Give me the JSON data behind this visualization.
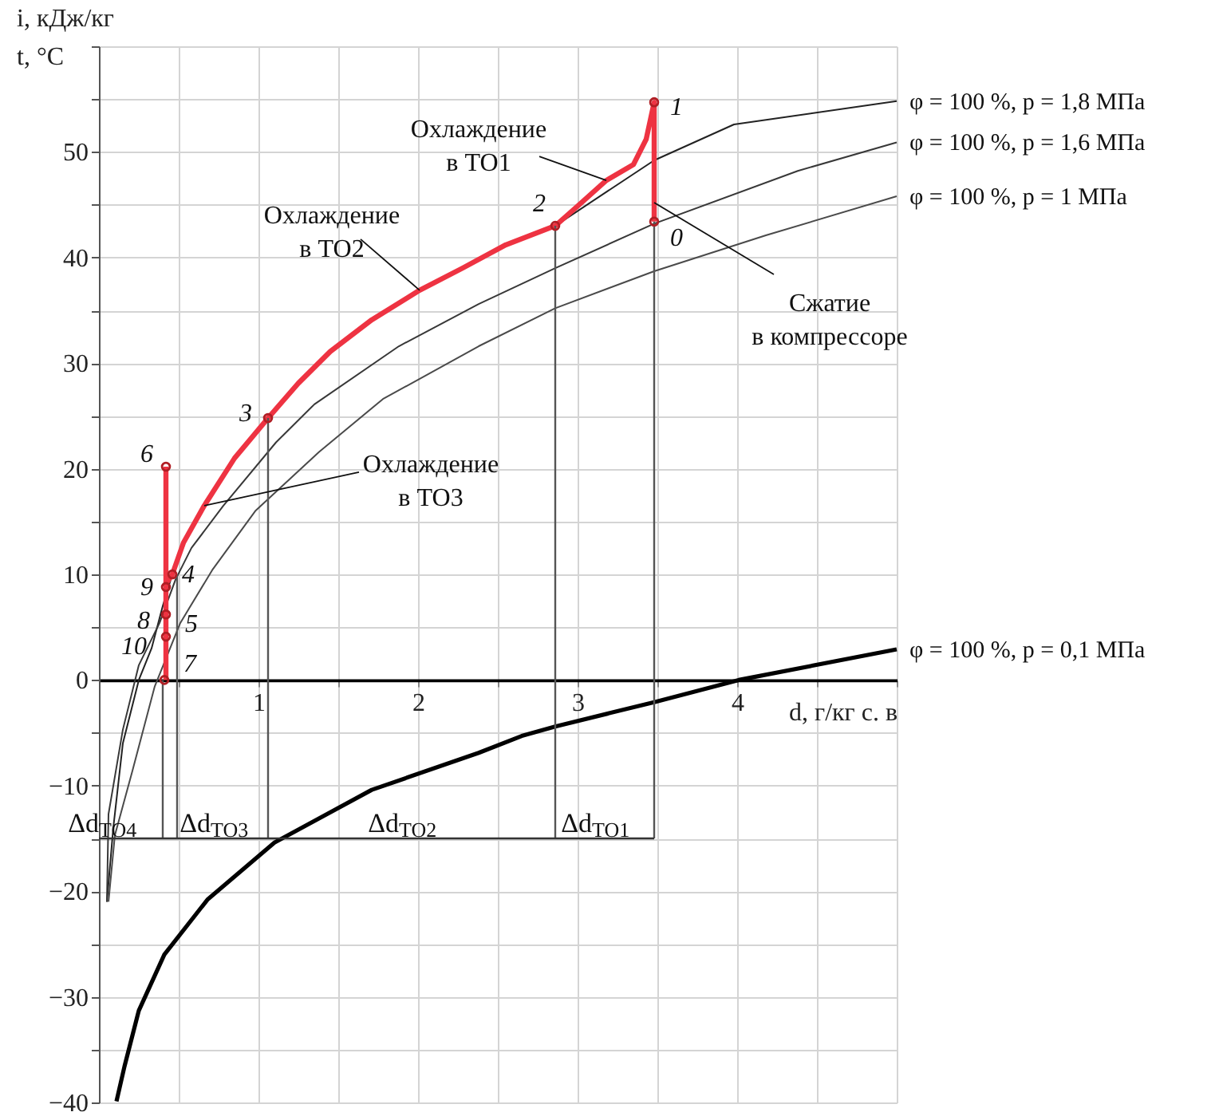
{
  "chart_data": {
    "type": "line",
    "xlabel": "d, г/кг с. в",
    "ylabel": "i, кДж/кг\nt, °C",
    "xlim": [
      0,
      5
    ],
    "ylim": [
      -40,
      60
    ],
    "xticks": [
      {
        "value": 0,
        "label": null
      },
      {
        "value": 0.5,
        "label": null
      },
      1,
      {
        "value": 1.5,
        "label": null
      },
      2,
      {
        "value": 2.5,
        "label": null
      },
      3,
      {
        "value": 3.5,
        "label": null
      },
      4,
      {
        "value": 4.5,
        "label": null
      },
      {
        "value": 5,
        "label": null
      }
    ],
    "yticks": [
      -40,
      {
        "value": -35,
        "label": null
      },
      -30,
      {
        "value": -25,
        "label": null
      },
      -20,
      {
        "value": -15,
        "label": null
      },
      -10,
      {
        "value": -5,
        "label": null
      },
      0,
      {
        "value": 5,
        "label": null
      },
      10,
      {
        "value": 15,
        "label": null
      },
      20,
      {
        "value": 25,
        "label": null
      },
      30,
      {
        "value": 35,
        "label": null
      },
      40,
      {
        "value": 45,
        "label": null
      },
      50,
      {
        "value": 55,
        "label": null
      },
      {
        "value": 60,
        "label": null
      }
    ],
    "grid": true,
    "series": [
      {
        "name": "φ = 100 %, p = 1,8 МПа",
        "color": "#222222",
        "x": [
          0.05,
          0.09,
          0.15,
          0.25,
          0.33,
          0.4,
          0.46,
          0.53,
          0.66,
          0.85,
          1.06,
          1.25,
          1.45,
          1.71,
          2.01,
          2.28,
          2.55,
          2.86,
          3.48,
          3.98,
          5.0
        ],
        "values": [
          -21,
          -14,
          -6,
          0,
          3,
          7,
          10.0,
          null,
          null,
          null,
          null,
          null,
          null,
          null,
          null,
          null,
          null,
          43.0,
          49.2,
          52.6,
          54.8
        ]
      },
      {
        "name": "φ = 100 %, p = 1,6 МПа",
        "color": "#383838",
        "x": [
          0.05,
          0.06,
          0.15,
          0.25,
          0.38,
          0.48,
          0.58,
          0.78,
          1.11,
          1.35,
          1.88,
          2.38,
          2.86,
          3.48,
          4.38,
          5.0
        ],
        "values": [
          -21,
          -12.7,
          -4.7,
          1.4,
          5.4,
          9.5,
          12.5,
          16.5,
          22.5,
          26.1,
          31.6,
          35.6,
          39.0,
          43.2,
          48.2,
          50.9
        ]
      },
      {
        "name": "φ = 100 %, p = 1 МПа",
        "color": "#4a4a4a",
        "x": [
          0.06,
          0.1,
          0.21,
          0.35,
          0.51,
          0.71,
          0.98,
          1.38,
          1.78,
          2.38,
          2.86,
          3.48,
          4.18,
          5.0
        ],
        "values": [
          -21,
          -14.7,
          -8.6,
          -0.6,
          5.4,
          10.4,
          16.0,
          21.6,
          26.6,
          31.6,
          35.2,
          38.7,
          42.1,
          45.8
        ]
      },
      {
        "name": "φ = 100 %, p = 0,1 МПа",
        "color": "#000000",
        "x": [
          0.11,
          0.16,
          0.25,
          0.41,
          0.68,
          1.1,
          1.71,
          2.38,
          2.65,
          2.86,
          3.48,
          4.01,
          5.0
        ],
        "values": [
          -39.9,
          -36.6,
          -31.3,
          -26.0,
          -20.8,
          -15.4,
          -10.4,
          -6.9,
          -5.3,
          -4.4,
          -2.1,
          0,
          2.9
        ]
      },
      {
        "type": "line",
        "color": "#ee3342",
        "x": [
          3.48,
          3.48,
          3.48,
          3.43,
          3.35,
          3.18,
          3.01,
          2.86,
          2.55,
          2.28,
          2.01,
          1.71,
          1.45,
          1.25,
          1.06,
          0.85,
          0.66,
          0.53,
          0.46,
          0.42
        ],
        "values": [
          43.4,
          45.2,
          54.7,
          51.2,
          48.8,
          47.3,
          45.0,
          43.0,
          41.2,
          39.0,
          36.9,
          34.1,
          31.1,
          28.1,
          24.8,
          21.0,
          16.5,
          13.0,
          10.0,
          9.1
        ]
      },
      {
        "type": "line",
        "color": "#ee3342",
        "x": [
          0.42,
          0.42
        ],
        "values": [
          20.2,
          0
        ]
      },
      {
        "type": "line",
        "color": "#555555",
        "x": [
          0.4,
          0.4
        ],
        "values": [
          0,
          -15
        ]
      },
      {
        "type": "line",
        "color": "#555555",
        "x": [
          0.49,
          0.49
        ],
        "values": [
          10.0,
          -15
        ]
      },
      {
        "type": "line",
        "color": "#555555",
        "x": [
          1.06,
          1.06
        ],
        "values": [
          24.8,
          -15
        ]
      },
      {
        "type": "line",
        "color": "#555555",
        "x": [
          2.86,
          2.86
        ],
        "values": [
          43.0,
          -15
        ]
      },
      {
        "type": "line",
        "color": "#555555",
        "x": [
          3.48,
          3.48
        ],
        "values": [
          43.4,
          -15
        ]
      },
      {
        "type": "line",
        "color": "#333333",
        "x": [
          0,
          3.48
        ],
        "values": [
          -15,
          -15
        ]
      },
      {
        "type": "scatter",
        "marker": "circle",
        "color": "#b01e24",
        "x": [
          3.48,
          3.48,
          2.86,
          1.06,
          0.46,
          0.42,
          0.42,
          0.42,
          0.42,
          0.41
        ],
        "values": [
          54.7,
          43.4,
          43.0,
          24.8,
          10.0,
          20.2,
          8.8,
          6.2,
          4.1,
          0
        ]
      }
    ],
    "annotations": [
      {
        "text": "1",
        "x": 3.48,
        "y": 54.7
      },
      {
        "text": "0",
        "x": 3.48,
        "y": 43.4
      },
      {
        "text": "2",
        "x": 2.86,
        "y": 43.0
      },
      {
        "text": "3",
        "x": 1.06,
        "y": 24.8
      },
      {
        "text": "6",
        "x": 0.42,
        "y": 20.2
      },
      {
        "text": "4",
        "x": 0.46,
        "y": 10.0
      },
      {
        "text": "9",
        "x": 0.42,
        "y": 8.8
      },
      {
        "text": "8",
        "x": 0.42,
        "y": 6.2
      },
      {
        "text": "5",
        "x": 0.42,
        "y": 6.2
      },
      {
        "text": "10",
        "x": 0.42,
        "y": 4.1
      },
      {
        "text": "7",
        "x": 0.41,
        "y": 0
      },
      {
        "text": "Охлаждение\nв ТО1",
        "x": 3.18,
        "y": 47.3
      },
      {
        "text": "Охлаждение\nв ТО2",
        "x": 2.01,
        "y": 36.9
      },
      {
        "text": "Охлаждение\nв ТО3",
        "x": 0.66,
        "y": 16.5
      },
      {
        "text": "Сжатие\nв компрессоре",
        "x": 3.48,
        "y": 45.2
      },
      {
        "text": "Δd$_{ТО4}$",
        "x": 0.2,
        "y": -15
      },
      {
        "text": "Δd$_{ТО3}$",
        "x": 0.78,
        "y": -15
      },
      {
        "text": "Δd$_{ТО2}$",
        "x": 1.96,
        "y": -15
      },
      {
        "text": "Δd$_{ТО1}$",
        "x": 3.17,
        "y": -15
      }
    ]
  }
}
